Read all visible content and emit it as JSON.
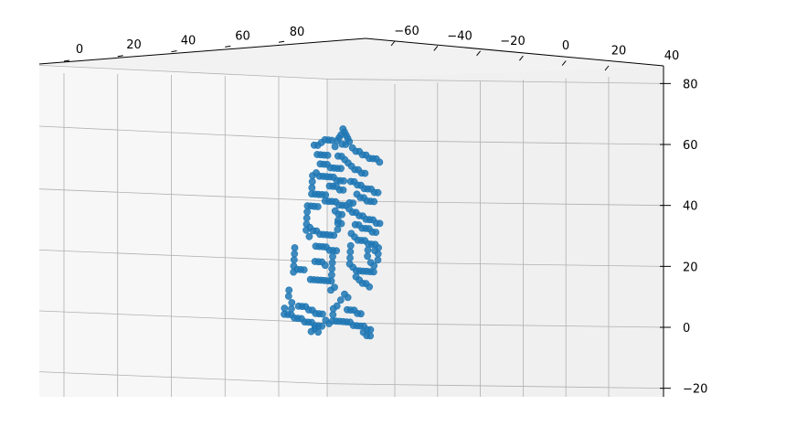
{
  "chart_data": {
    "type": "scatter",
    "projection": "3d",
    "title": "",
    "xlabel": "",
    "ylabel": "",
    "zlabel": "",
    "grid": true,
    "marker_color": "#1f77b4",
    "pane_colors": [
      "#f7f7f7",
      "#f0f0f0"
    ],
    "grid_color": "#b0b0b0",
    "axes": {
      "x": {
        "range": [
          -5,
          100
        ],
        "ticks": [
          0,
          20,
          40,
          60,
          80
        ],
        "tick_labels": [
          "0",
          "20",
          "40",
          "60",
          "80"
        ]
      },
      "y": {
        "range": [
          -70,
          40
        ],
        "ticks": [
          -60,
          -40,
          -20,
          0,
          20,
          40
        ],
        "tick_labels": [
          "−60",
          "−40",
          "−20",
          "0",
          "20",
          "40"
        ]
      },
      "z": {
        "range": [
          -22,
          84
        ],
        "ticks": [
          -20,
          0,
          20,
          40,
          60,
          80
        ],
        "tick_labels": [
          "−20",
          "0",
          "20",
          "40",
          "60",
          "80"
        ]
      }
    },
    "series": [
      {
        "points_yz": [
          [
            -12,
            64
          ],
          [
            -11,
            63
          ],
          [
            -10,
            62
          ],
          [
            -13,
            62
          ],
          [
            -9,
            61
          ],
          [
            -14,
            61
          ],
          [
            -8,
            60
          ],
          [
            -15,
            60
          ],
          [
            -12,
            59
          ],
          [
            -10,
            59
          ],
          [
            -24,
            59
          ],
          [
            -22,
            60
          ],
          [
            -20,
            60
          ],
          [
            -18,
            60
          ],
          [
            -26,
            58
          ],
          [
            -28,
            58
          ],
          [
            -16,
            58
          ],
          [
            -6,
            58
          ],
          [
            -4,
            57
          ],
          [
            -2,
            57
          ],
          [
            0,
            56
          ],
          [
            2,
            56
          ],
          [
            4,
            55
          ],
          [
            6,
            55
          ],
          [
            8,
            55
          ],
          [
            10,
            54
          ],
          [
            -26,
            55
          ],
          [
            -24,
            55
          ],
          [
            -22,
            55
          ],
          [
            -20,
            55
          ],
          [
            -14,
            55
          ],
          [
            -12,
            55
          ],
          [
            -10,
            54
          ],
          [
            -24,
            52
          ],
          [
            -22,
            52
          ],
          [
            -20,
            52
          ],
          [
            -18,
            51
          ],
          [
            -16,
            51
          ],
          [
            -14,
            51
          ],
          [
            -12,
            51
          ],
          [
            -8,
            53
          ],
          [
            -6,
            52
          ],
          [
            -4,
            51
          ],
          [
            -2,
            51
          ],
          [
            0,
            50
          ],
          [
            2,
            50
          ],
          [
            -26,
            49
          ],
          [
            -24,
            48
          ],
          [
            -22,
            48
          ],
          [
            -20,
            48
          ],
          [
            -18,
            48
          ],
          [
            -16,
            48
          ],
          [
            -14,
            47
          ],
          [
            -12,
            47
          ],
          [
            -10,
            47
          ],
          [
            -28,
            48
          ],
          [
            -28,
            46
          ],
          [
            -28,
            44
          ],
          [
            -28,
            42
          ],
          [
            -26,
            42
          ],
          [
            -24,
            42
          ],
          [
            -22,
            42
          ],
          [
            -20,
            42
          ],
          [
            -18,
            45
          ],
          [
            -16,
            45
          ],
          [
            -14,
            45
          ],
          [
            -12,
            44
          ],
          [
            -10,
            44
          ],
          [
            -6,
            47
          ],
          [
            -4,
            47
          ],
          [
            -2,
            46
          ],
          [
            0,
            46
          ],
          [
            2,
            45
          ],
          [
            4,
            45
          ],
          [
            6,
            45
          ],
          [
            8,
            44
          ],
          [
            10,
            44
          ],
          [
            -20,
            40
          ],
          [
            -18,
            40
          ],
          [
            -16,
            40
          ],
          [
            -14,
            40
          ],
          [
            -12,
            39
          ],
          [
            -10,
            39
          ],
          [
            -8,
            39
          ],
          [
            -2,
            43
          ],
          [
            0,
            42
          ],
          [
            2,
            42
          ],
          [
            4,
            41
          ],
          [
            6,
            41
          ],
          [
            8,
            41
          ],
          [
            -6,
            40
          ],
          [
            -4,
            40
          ],
          [
            -6,
            38
          ],
          [
            -4,
            37
          ],
          [
            -30,
            38
          ],
          [
            -28,
            38
          ],
          [
            -26,
            38
          ],
          [
            -24,
            38
          ],
          [
            -30,
            36
          ],
          [
            -30,
            34
          ],
          [
            -30,
            32
          ],
          [
            -14,
            37
          ],
          [
            -12,
            36
          ],
          [
            -10,
            36
          ],
          [
            -12,
            34
          ],
          [
            -10,
            33
          ],
          [
            -28,
            31
          ],
          [
            -26,
            30
          ],
          [
            -24,
            30
          ],
          [
            -22,
            29
          ],
          [
            -20,
            29
          ],
          [
            -18,
            29
          ],
          [
            -16,
            29
          ],
          [
            -14,
            29
          ],
          [
            -12,
            31
          ],
          [
            -12,
            33
          ],
          [
            -2,
            37
          ],
          [
            0,
            36
          ],
          [
            2,
            36
          ],
          [
            4,
            35
          ],
          [
            6,
            35
          ],
          [
            8,
            35
          ],
          [
            10,
            34
          ],
          [
            12,
            34
          ],
          [
            -2,
            33
          ],
          [
            0,
            33
          ],
          [
            2,
            32
          ],
          [
            4,
            32
          ],
          [
            6,
            32
          ],
          [
            8,
            31
          ],
          [
            10,
            31
          ],
          [
            -30,
            30
          ],
          [
            -28,
            28
          ],
          [
            -4,
            30
          ],
          [
            -2,
            29
          ],
          [
            0,
            28
          ],
          [
            2,
            28
          ],
          [
            4,
            28
          ],
          [
            6,
            27
          ],
          [
            8,
            27
          ],
          [
            10,
            27
          ],
          [
            12,
            26
          ],
          [
            -24,
            25
          ],
          [
            -22,
            25
          ],
          [
            -20,
            25
          ],
          [
            -18,
            25
          ],
          [
            -16,
            24
          ],
          [
            -14,
            24
          ],
          [
            -12,
            24
          ],
          [
            -4,
            26
          ],
          [
            -4,
            24
          ],
          [
            -4,
            22
          ],
          [
            -4,
            20
          ],
          [
            -2,
            19
          ],
          [
            0,
            18
          ],
          [
            2,
            18
          ],
          [
            4,
            18
          ],
          [
            6,
            18
          ],
          [
            8,
            18
          ],
          [
            10,
            18
          ],
          [
            6,
            25
          ],
          [
            6,
            23
          ],
          [
            8,
            21
          ],
          [
            10,
            20
          ],
          [
            12,
            22
          ],
          [
            12,
            24
          ],
          [
            10,
            25
          ],
          [
            -36,
            24
          ],
          [
            -36,
            22
          ],
          [
            -36,
            20
          ],
          [
            -36,
            18
          ],
          [
            -36,
            16
          ],
          [
            -34,
            17
          ],
          [
            -32,
            17
          ],
          [
            -30,
            17
          ],
          [
            -14,
            22
          ],
          [
            -14,
            20
          ],
          [
            -14,
            18
          ],
          [
            -14,
            16
          ],
          [
            -14,
            14
          ],
          [
            -16,
            14
          ],
          [
            -18,
            14
          ],
          [
            -20,
            14
          ],
          [
            -22,
            14
          ],
          [
            -24,
            14
          ],
          [
            -26,
            14
          ],
          [
            -20,
            20
          ],
          [
            -22,
            20
          ],
          [
            -24,
            20
          ],
          [
            -18,
            19
          ],
          [
            0,
            16
          ],
          [
            2,
            15
          ],
          [
            4,
            14
          ],
          [
            6,
            14
          ],
          [
            8,
            13
          ],
          [
            -12,
            12
          ],
          [
            -14,
            11
          ],
          [
            -6,
            10
          ],
          [
            -4,
            9
          ],
          [
            -8,
            8
          ],
          [
            -10,
            6
          ],
          [
            -12,
            5
          ],
          [
            -12,
            3
          ],
          [
            -12,
            1
          ],
          [
            -10,
            1
          ],
          [
            -8,
            1
          ],
          [
            -6,
            1
          ],
          [
            -4,
            1
          ],
          [
            -2,
            1
          ],
          [
            0,
            0
          ],
          [
            2,
            0
          ],
          [
            4,
            0
          ],
          [
            6,
            0
          ],
          [
            8,
            -1
          ],
          [
            10,
            -1
          ],
          [
            -4,
            5
          ],
          [
            -2,
            5
          ],
          [
            0,
            5
          ],
          [
            2,
            4
          ],
          [
            4,
            4
          ],
          [
            -38,
            10
          ],
          [
            -38,
            8
          ],
          [
            -36,
            6
          ],
          [
            -36,
            4
          ],
          [
            -36,
            2
          ],
          [
            -38,
            2
          ],
          [
            -40,
            2
          ],
          [
            -40,
            4
          ],
          [
            -34,
            1
          ],
          [
            -32,
            1
          ],
          [
            -30,
            1
          ],
          [
            -28,
            0
          ],
          [
            -26,
            0
          ],
          [
            -24,
            0
          ],
          [
            -22,
            -1
          ],
          [
            -20,
            -1
          ],
          [
            -18,
            -1
          ],
          [
            -32,
            5
          ],
          [
            -30,
            5
          ],
          [
            -28,
            5
          ],
          [
            -26,
            4
          ],
          [
            -24,
            4
          ],
          [
            -22,
            3
          ],
          [
            -20,
            3
          ],
          [
            -18,
            3
          ],
          [
            -16,
            1
          ],
          [
            -14,
            0
          ],
          [
            -22,
            -2
          ],
          [
            -24,
            -3
          ],
          [
            -20,
            -3
          ],
          [
            6,
            -2
          ],
          [
            8,
            -3
          ],
          [
            10,
            -3
          ]
        ]
      }
    ]
  }
}
